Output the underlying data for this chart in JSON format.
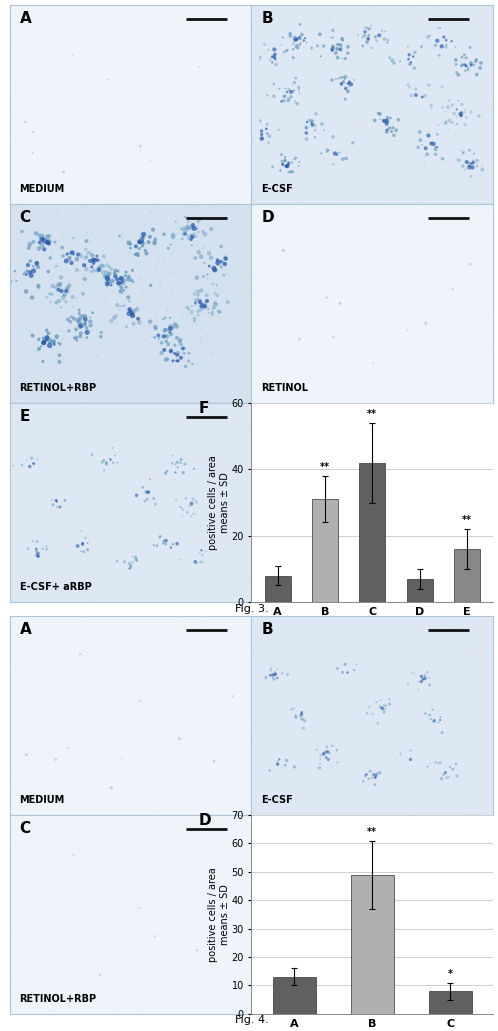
{
  "fig3_caption": "Fig. 3.",
  "fig4_caption": "Fig. 4.",
  "fig3_bar": {
    "categories": [
      "A",
      "B",
      "C",
      "D",
      "E"
    ],
    "values": [
      8,
      31,
      42,
      7,
      16
    ],
    "errors": [
      3,
      7,
      12,
      3,
      6
    ],
    "bar_colors_detail": [
      "dark",
      "light",
      "dark",
      "dark",
      "medium"
    ],
    "significance": [
      "",
      "**",
      "**",
      "",
      "**"
    ],
    "ylabel": "positive cells / area\nmeans ± SD",
    "panel_label": "F",
    "ylim": [
      0,
      60
    ],
    "yticks": [
      0,
      20,
      40,
      60
    ]
  },
  "fig4_bar": {
    "categories": [
      "A",
      "B",
      "C"
    ],
    "values": [
      13,
      49,
      8
    ],
    "errors": [
      3,
      12,
      3
    ],
    "bar_colors_detail": [
      "dark",
      "light",
      "dark"
    ],
    "significance": [
      "",
      "**",
      "*"
    ],
    "ylabel": "positive cells / area\nmeans ± SD",
    "panel_label": "D",
    "ylim": [
      0,
      70
    ],
    "yticks": [
      0,
      10,
      20,
      30,
      40,
      50,
      60,
      70
    ]
  },
  "bg_light": "#eef4fa",
  "bg_medium": "#dde8f4",
  "bg_dense": "#d4e2f0",
  "panel_border_color": "#aec4d8",
  "scale_bar_color": "#111111",
  "cell_color_light": "#a8c8e0",
  "cell_color_mid": "#6699bb",
  "cell_color_dark": "#2255aa",
  "label_fontsize": 11,
  "caption_fontsize": 7,
  "bar_label_fontsize": 8,
  "axis_label_fontsize": 7,
  "tick_fontsize": 7,
  "sig_fontsize": 7
}
